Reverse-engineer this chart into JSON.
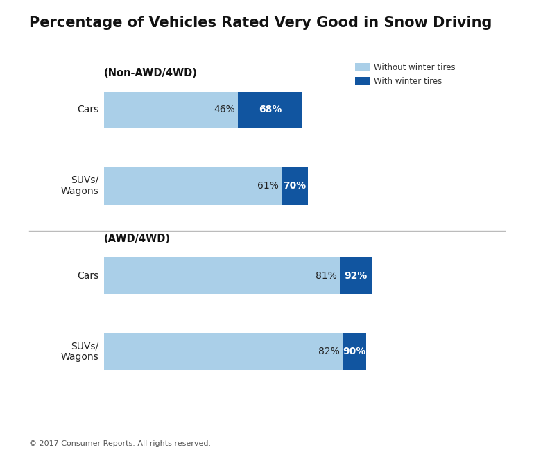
{
  "title": "Percentage of Vehicles Rated Very Good in Snow Driving",
  "sections": [
    {
      "label": "(Non-AWD/4WD)",
      "bars": [
        {
          "category": "Cars",
          "without": 46,
          "with": 68
        },
        {
          "category": "SUVs/\nWagons",
          "without": 61,
          "with": 70
        }
      ]
    },
    {
      "label": "(AWD/4WD)",
      "bars": [
        {
          "category": "Cars",
          "without": 81,
          "with": 92
        },
        {
          "category": "SUVs/\nWagons",
          "without": 82,
          "with": 90
        }
      ]
    }
  ],
  "color_without": "#aacfe8",
  "color_with": "#1155a0",
  "legend_without": "Without winter tires",
  "legend_with": "With winter tires",
  "footer": "© 2017 Consumer Reports. All rights reserved.",
  "background_color": "#ffffff",
  "bar_max": 100
}
